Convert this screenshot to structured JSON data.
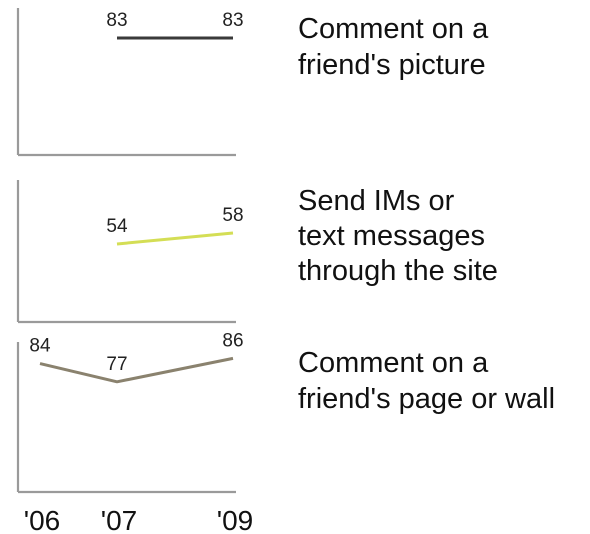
{
  "chart_data": [
    {
      "type": "line",
      "x": [
        "'07",
        "'09"
      ],
      "series": [
        {
          "name": "Comment on a friend's picture",
          "values": [
            83,
            83
          ],
          "color": "#3a3a3a"
        }
      ],
      "label_lines": [
        "Comment on a",
        "friend's picture"
      ]
    },
    {
      "type": "line",
      "x": [
        "'07",
        "'09"
      ],
      "series": [
        {
          "name": "Send IMs or text messages through the site",
          "values": [
            54,
            58
          ],
          "color": "#d4de55"
        }
      ],
      "label_lines": [
        "Send IMs or",
        "text messages",
        "through the site"
      ]
    },
    {
      "type": "line",
      "x": [
        "'06",
        "'07",
        "'09"
      ],
      "series": [
        {
          "name": "Comment on a friend's page or wall",
          "values": [
            84,
            77,
            86
          ],
          "color": "#8a826e"
        }
      ],
      "label_lines": [
        "Comment on a",
        "friend's page or wall"
      ]
    }
  ],
  "x_ticks": [
    "'06",
    "'07",
    "'09"
  ]
}
